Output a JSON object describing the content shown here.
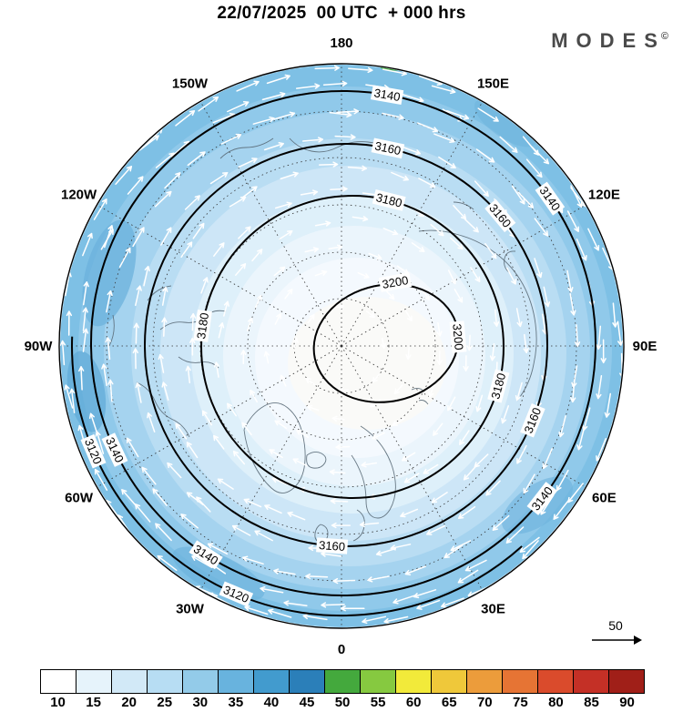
{
  "header": {
    "title": "22/07/2025  00 UTC  + 000 hrs",
    "brand": "MODES",
    "brand_mark": "©"
  },
  "chart_data": {
    "type": "heatmap",
    "subtype": "north-polar-stereographic-weather-map",
    "title": "22/07/2025  00 UTC  + 000 hrs",
    "projection_labels": [
      {
        "text": "180",
        "angle": 0
      },
      {
        "text": "150E",
        "angle": 30
      },
      {
        "text": "120E",
        "angle": 60
      },
      {
        "text": "90E",
        "angle": 90
      },
      {
        "text": "60E",
        "angle": 120
      },
      {
        "text": "30E",
        "angle": 150
      },
      {
        "text": "0",
        "angle": 180
      },
      {
        "text": "30W",
        "angle": 210
      },
      {
        "text": "60W",
        "angle": 240
      },
      {
        "text": "90W",
        "angle": 270
      },
      {
        "text": "120W",
        "angle": 300
      },
      {
        "text": "150W",
        "angle": 330
      }
    ],
    "contours": {
      "levels": [
        "3120",
        "3140",
        "3160",
        "3180",
        "3200"
      ],
      "interval": 20
    },
    "colorbar": {
      "ticks": [
        "10",
        "15",
        "20",
        "25",
        "30",
        "35",
        "40",
        "45",
        "50",
        "55",
        "60",
        "65",
        "70",
        "75",
        "80",
        "85",
        "90"
      ],
      "colors": [
        "#ffffff",
        "#e6f3fb",
        "#d2e9f7",
        "#b7ddf3",
        "#93cbe9",
        "#68b3de",
        "#429bce",
        "#2b7fb9",
        "#44a93d",
        "#86c940",
        "#f2ea3a",
        "#efc83a",
        "#ec9c3b",
        "#e67434",
        "#da4b2c",
        "#c43026",
        "#a01f18"
      ]
    },
    "map_shading": [
      "#7ec0e5",
      "#90c9ea",
      "#a5d3ef",
      "#b9ddf3",
      "#cde6f7",
      "#def0fa",
      "#ebf5fc",
      "#f4f9fe",
      "#fafaf8"
    ],
    "wind_reference_value": "50",
    "legend_position": "bottom",
    "grid": "dashed-graticule"
  }
}
